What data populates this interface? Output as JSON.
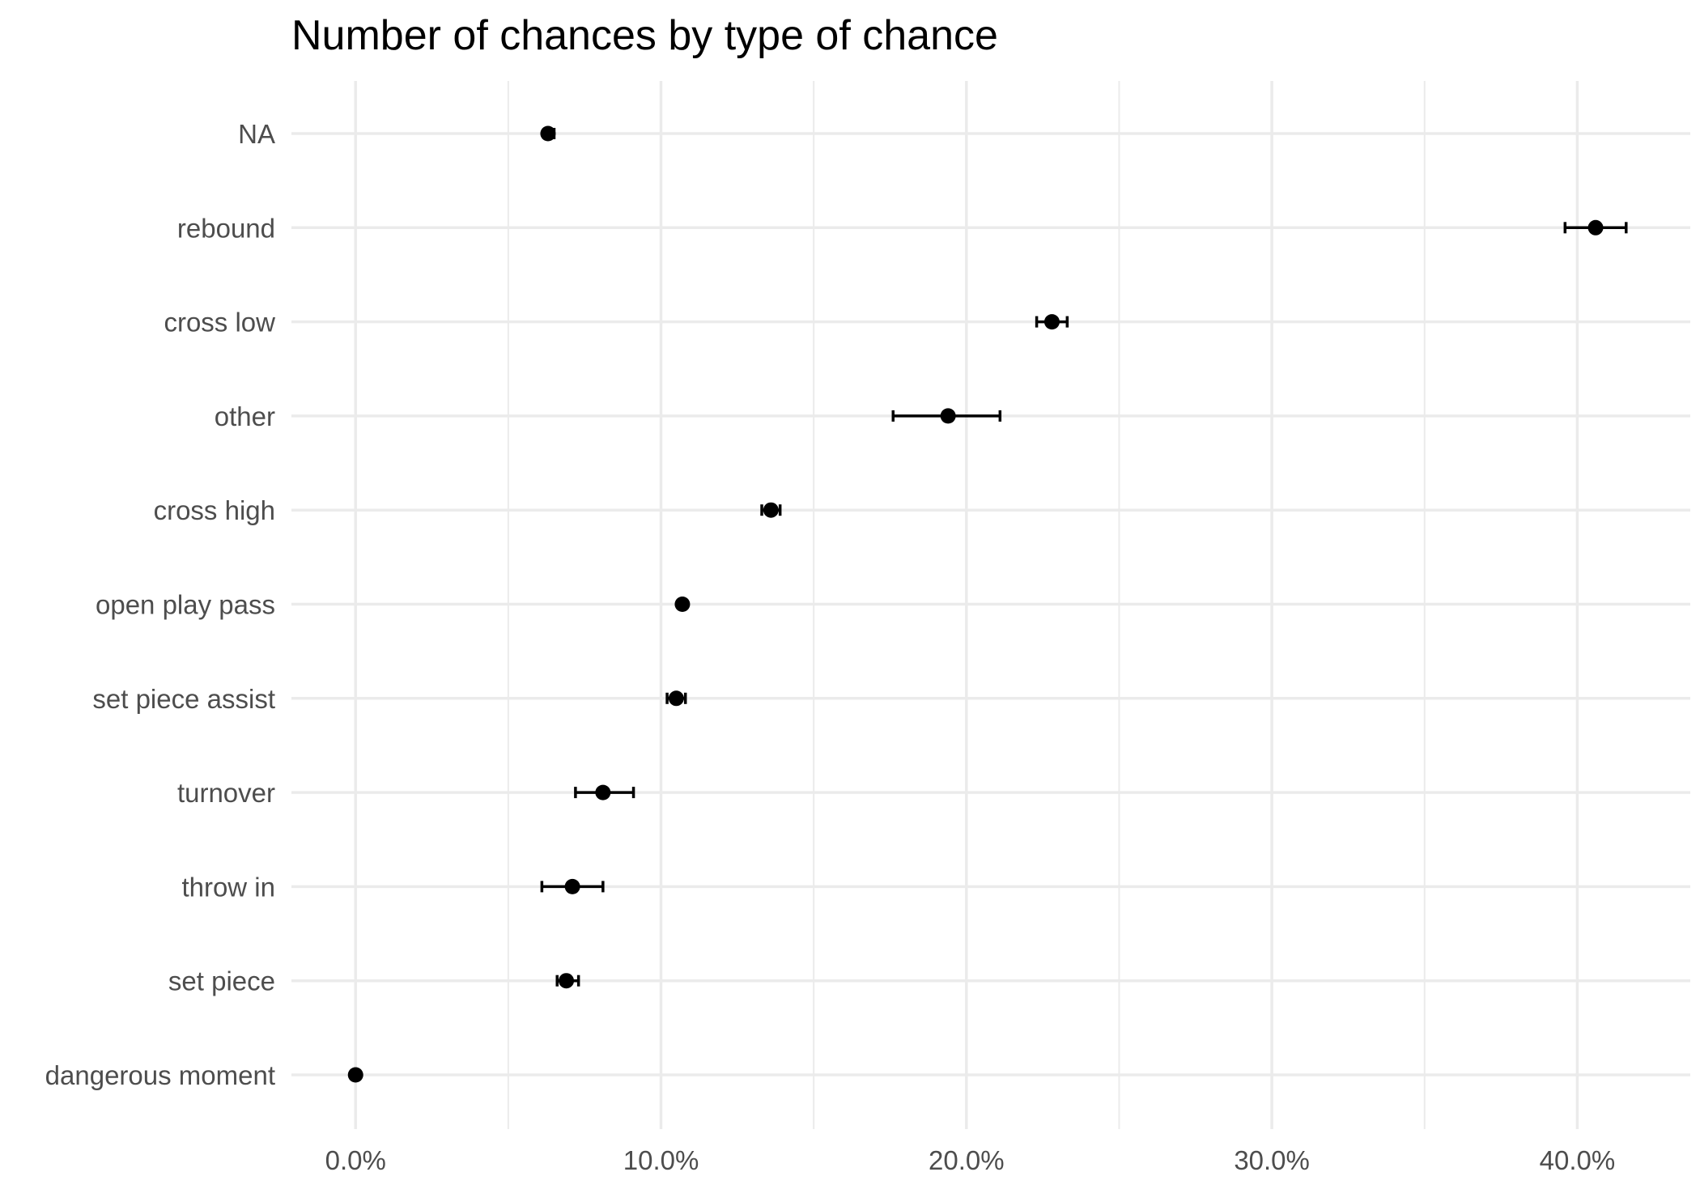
{
  "chart_data": {
    "type": "scatter",
    "title": "Number of chances by type of chance",
    "xlabel": "",
    "ylabel": "",
    "xlim": [
      -2.1,
      43.7
    ],
    "x_ticks": [
      0,
      10,
      20,
      30,
      40
    ],
    "x_tick_labels": [
      "0.0%",
      "10.0%",
      "20.0%",
      "30.0%",
      "40.0%"
    ],
    "categories": [
      "NA",
      "rebound",
      "cross low",
      "other",
      "cross high",
      "open play pass",
      "set piece assist",
      "turnover",
      "throw in",
      "set piece",
      "dangerous moment"
    ],
    "values": [
      6.3,
      40.6,
      22.8,
      19.4,
      13.6,
      10.7,
      10.5,
      8.1,
      7.1,
      6.9,
      0.0
    ],
    "error_low": [
      6.2,
      39.6,
      22.3,
      17.6,
      13.3,
      10.7,
      10.2,
      7.2,
      6.1,
      6.6,
      0.0
    ],
    "error_high": [
      6.5,
      41.6,
      23.3,
      21.1,
      13.9,
      10.7,
      10.8,
      9.1,
      8.1,
      7.3,
      0.0
    ],
    "grid": true,
    "legend": "none",
    "colors": {
      "point": "#000000",
      "grid": "#ebebeb",
      "text": "#4d4d4d"
    }
  }
}
